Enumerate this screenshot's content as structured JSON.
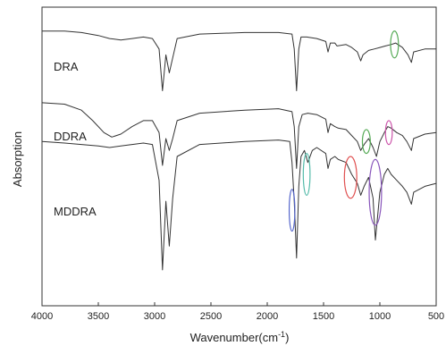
{
  "chart_data": {
    "type": "line",
    "xlabel": "Wavenumber(cm",
    "xlabel_sup": "-1",
    "xlabel_close": ")",
    "ylabel": "Absorption",
    "xlim": [
      4000,
      500
    ],
    "x_reversed": true,
    "ylim": [
      0,
      1
    ],
    "grid": false,
    "ticks": [
      "4000",
      "3500",
      "3000",
      "2500",
      "2000",
      "1500",
      "1000",
      "500"
    ],
    "tick_values": [
      4000,
      3500,
      3000,
      2500,
      2000,
      1500,
      1000,
      500
    ],
    "series": [
      {
        "name": "DRA",
        "color": "#333333",
        "points": [
          [
            4000,
            0.92
          ],
          [
            3800,
            0.92
          ],
          [
            3650,
            0.915
          ],
          [
            3500,
            0.905
          ],
          [
            3400,
            0.895
          ],
          [
            3300,
            0.89
          ],
          [
            3200,
            0.895
          ],
          [
            3100,
            0.9
          ],
          [
            3020,
            0.895
          ],
          [
            2960,
            0.86
          ],
          [
            2930,
            0.72
          ],
          [
            2900,
            0.84
          ],
          [
            2870,
            0.78
          ],
          [
            2840,
            0.83
          ],
          [
            2800,
            0.895
          ],
          [
            2600,
            0.91
          ],
          [
            2200,
            0.915
          ],
          [
            1900,
            0.915
          ],
          [
            1780,
            0.91
          ],
          [
            1760,
            0.86
          ],
          [
            1740,
            0.72
          ],
          [
            1720,
            0.86
          ],
          [
            1700,
            0.9
          ],
          [
            1650,
            0.9
          ],
          [
            1560,
            0.895
          ],
          [
            1480,
            0.885
          ],
          [
            1460,
            0.85
          ],
          [
            1440,
            0.88
          ],
          [
            1400,
            0.88
          ],
          [
            1380,
            0.87
          ],
          [
            1300,
            0.875
          ],
          [
            1250,
            0.865
          ],
          [
            1200,
            0.85
          ],
          [
            1170,
            0.82
          ],
          [
            1150,
            0.84
          ],
          [
            1100,
            0.855
          ],
          [
            1050,
            0.86
          ],
          [
            1000,
            0.865
          ],
          [
            950,
            0.87
          ],
          [
            900,
            0.875
          ],
          [
            860,
            0.88
          ],
          [
            800,
            0.865
          ],
          [
            750,
            0.84
          ],
          [
            720,
            0.815
          ],
          [
            700,
            0.85
          ],
          [
            600,
            0.86
          ],
          [
            500,
            0.86
          ]
        ]
      },
      {
        "name": "DDRA",
        "color": "#333333",
        "points": [
          [
            4000,
            0.68
          ],
          [
            3800,
            0.675
          ],
          [
            3650,
            0.655
          ],
          [
            3550,
            0.62
          ],
          [
            3450,
            0.58
          ],
          [
            3380,
            0.565
          ],
          [
            3300,
            0.575
          ],
          [
            3200,
            0.6
          ],
          [
            3100,
            0.62
          ],
          [
            3020,
            0.62
          ],
          [
            2960,
            0.58
          ],
          [
            2930,
            0.47
          ],
          [
            2900,
            0.56
          ],
          [
            2870,
            0.52
          ],
          [
            2840,
            0.56
          ],
          [
            2800,
            0.62
          ],
          [
            2600,
            0.645
          ],
          [
            2200,
            0.655
          ],
          [
            1900,
            0.66
          ],
          [
            1780,
            0.65
          ],
          [
            1760,
            0.6
          ],
          [
            1740,
            0.46
          ],
          [
            1720,
            0.6
          ],
          [
            1690,
            0.64
          ],
          [
            1640,
            0.645
          ],
          [
            1560,
            0.64
          ],
          [
            1480,
            0.625
          ],
          [
            1460,
            0.58
          ],
          [
            1440,
            0.61
          ],
          [
            1400,
            0.6
          ],
          [
            1370,
            0.595
          ],
          [
            1300,
            0.59
          ],
          [
            1250,
            0.57
          ],
          [
            1200,
            0.55
          ],
          [
            1170,
            0.52
          ],
          [
            1140,
            0.54
          ],
          [
            1100,
            0.56
          ],
          [
            1060,
            0.53
          ],
          [
            1030,
            0.5
          ],
          [
            1000,
            0.55
          ],
          [
            960,
            0.58
          ],
          [
            930,
            0.6
          ],
          [
            900,
            0.595
          ],
          [
            850,
            0.58
          ],
          [
            800,
            0.57
          ],
          [
            760,
            0.55
          ],
          [
            720,
            0.52
          ],
          [
            700,
            0.56
          ],
          [
            600,
            0.575
          ],
          [
            500,
            0.58
          ]
        ]
      },
      {
        "name": "MDDRA",
        "color": "#333333",
        "points": [
          [
            4000,
            0.55
          ],
          [
            3800,
            0.545
          ],
          [
            3650,
            0.54
          ],
          [
            3500,
            0.535
          ],
          [
            3400,
            0.53
          ],
          [
            3300,
            0.535
          ],
          [
            3200,
            0.54
          ],
          [
            3100,
            0.545
          ],
          [
            3020,
            0.54
          ],
          [
            2960,
            0.42
          ],
          [
            2930,
            0.12
          ],
          [
            2900,
            0.35
          ],
          [
            2870,
            0.2
          ],
          [
            2840,
            0.36
          ],
          [
            2800,
            0.5
          ],
          [
            2600,
            0.54
          ],
          [
            2200,
            0.55
          ],
          [
            1900,
            0.555
          ],
          [
            1800,
            0.55
          ],
          [
            1780,
            0.48
          ],
          [
            1760,
            0.35
          ],
          [
            1740,
            0.16
          ],
          [
            1720,
            0.4
          ],
          [
            1700,
            0.5
          ],
          [
            1670,
            0.52
          ],
          [
            1640,
            0.48
          ],
          [
            1600,
            0.52
          ],
          [
            1560,
            0.53
          ],
          [
            1480,
            0.51
          ],
          [
            1460,
            0.46
          ],
          [
            1440,
            0.49
          ],
          [
            1400,
            0.5
          ],
          [
            1370,
            0.49
          ],
          [
            1300,
            0.48
          ],
          [
            1250,
            0.44
          ],
          [
            1200,
            0.41
          ],
          [
            1170,
            0.37
          ],
          [
            1140,
            0.4
          ],
          [
            1100,
            0.43
          ],
          [
            1060,
            0.36
          ],
          [
            1040,
            0.22
          ],
          [
            1020,
            0.3
          ],
          [
            1000,
            0.38
          ],
          [
            960,
            0.44
          ],
          [
            930,
            0.46
          ],
          [
            900,
            0.44
          ],
          [
            850,
            0.42
          ],
          [
            800,
            0.4
          ],
          [
            760,
            0.38
          ],
          [
            720,
            0.34
          ],
          [
            700,
            0.38
          ],
          [
            600,
            0.4
          ],
          [
            500,
            0.41
          ]
        ]
      }
    ],
    "annotations": [
      {
        "type": "ellipse",
        "x": 870,
        "y": 0.875,
        "rx_units": 35,
        "ry_units": 0.045,
        "color": "#55aa55"
      },
      {
        "type": "ellipse",
        "x": 1120,
        "y": 0.55,
        "rx_units": 35,
        "ry_units": 0.04,
        "color": "#55aa55"
      },
      {
        "type": "ellipse",
        "x": 920,
        "y": 0.58,
        "rx_units": 30,
        "ry_units": 0.04,
        "color": "#cc55aa"
      },
      {
        "type": "ellipse",
        "x": 1260,
        "y": 0.43,
        "rx_units": 55,
        "ry_units": 0.07,
        "color": "#e05050"
      },
      {
        "type": "ellipse",
        "x": 1040,
        "y": 0.38,
        "rx_units": 55,
        "ry_units": 0.11,
        "color": "#8855bb"
      },
      {
        "type": "ellipse",
        "x": 1650,
        "y": 0.44,
        "rx_units": 30,
        "ry_units": 0.07,
        "color": "#55bbaa"
      },
      {
        "type": "ellipse",
        "x": 1780,
        "y": 0.32,
        "rx_units": 25,
        "ry_units": 0.07,
        "color": "#5566cc"
      }
    ]
  }
}
